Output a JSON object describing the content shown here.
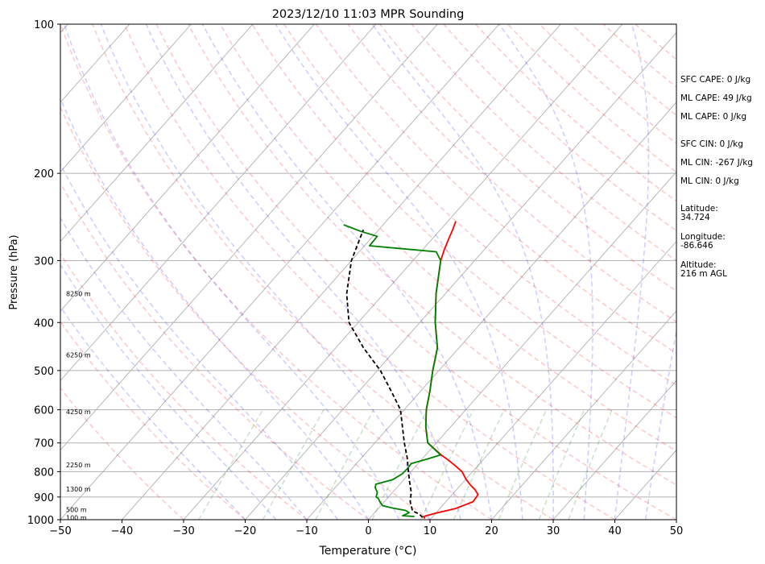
{
  "chart_data": {
    "type": "line",
    "title": "2023/12/10 11:03 MPR Sounding",
    "xlabel": "Temperature (°C)",
    "ylabel": "Pressure (hPa)",
    "xlim": [
      -50,
      50
    ],
    "ylim": [
      1000,
      100
    ],
    "y_scale": "log",
    "x_ticks": [
      "−50",
      "−40",
      "−30",
      "−20",
      "−10",
      "0",
      "10",
      "20",
      "30",
      "40",
      "50"
    ],
    "y_ticks": [
      100,
      200,
      300,
      400,
      500,
      600,
      700,
      800,
      900,
      1000
    ],
    "grid": true,
    "height_labels": [
      {
        "text": "100 m",
        "p": 990
      },
      {
        "text": "500 m",
        "p": 955
      },
      {
        "text": "1300 m",
        "p": 867
      },
      {
        "text": "2250 m",
        "p": 775
      },
      {
        "text": "4250 m",
        "p": 605
      },
      {
        "text": "6250 m",
        "p": 465
      },
      {
        "text": "8250 m",
        "p": 350
      }
    ],
    "series": [
      {
        "kind": "temperature",
        "color": "#ff0000",
        "points": [
          [
            9,
            995
          ],
          [
            8.5,
            985
          ],
          [
            10,
            970
          ],
          [
            12.5,
            950
          ],
          [
            14.4,
            920
          ],
          [
            14.2,
            890
          ],
          [
            13,
            870
          ],
          [
            11.5,
            850
          ],
          [
            10.1,
            830
          ],
          [
            8.3,
            800
          ],
          [
            6.5,
            780
          ],
          [
            4.6,
            760
          ],
          [
            2.5,
            740
          ],
          [
            -1.4,
            700
          ],
          [
            -4,
            650
          ],
          [
            -6.4,
            600
          ],
          [
            -8.5,
            550
          ],
          [
            -11,
            500
          ],
          [
            -13.5,
            450
          ],
          [
            -17.5,
            400
          ],
          [
            -21.5,
            350
          ],
          [
            -25.5,
            300
          ],
          [
            -26.5,
            285
          ],
          [
            -27.4,
            270
          ],
          [
            -28,
            260
          ],
          [
            -28.7,
            250
          ]
        ]
      },
      {
        "kind": "dewpoint",
        "color": "#008000",
        "points": [
          [
            7,
            985
          ],
          [
            5,
            982
          ],
          [
            5.6,
            968
          ],
          [
            4.7,
            958
          ],
          [
            2.4,
            948
          ],
          [
            0.3,
            937
          ],
          [
            -0.6,
            922
          ],
          [
            -1.5,
            905
          ],
          [
            -2,
            900
          ],
          [
            -2.5,
            880
          ],
          [
            -3.5,
            862
          ],
          [
            -3.9,
            848
          ],
          [
            -1.8,
            830
          ],
          [
            -1.1,
            808
          ],
          [
            -1,
            790
          ],
          [
            -1.1,
            770
          ],
          [
            0.8,
            755
          ],
          [
            2.4,
            740
          ],
          [
            -1.4,
            700
          ],
          [
            -4,
            650
          ],
          [
            -6.4,
            600
          ],
          [
            -8.5,
            550
          ],
          [
            -11,
            500
          ],
          [
            -13.5,
            450
          ],
          [
            -17.5,
            400
          ],
          [
            -21.5,
            350
          ],
          [
            -25.5,
            300
          ],
          [
            -27.5,
            288
          ],
          [
            -39.2,
            280
          ],
          [
            -39.3,
            268
          ],
          [
            -42.6,
            262
          ],
          [
            -46.4,
            254
          ]
        ]
      },
      {
        "kind": "parcel",
        "color": "#000000",
        "points": [
          [
            8.5,
            990
          ],
          [
            7.5,
            975
          ],
          [
            5.9,
            960
          ],
          [
            4.2,
            920
          ],
          [
            3,
            880
          ],
          [
            1.3,
            840
          ],
          [
            -0.4,
            800
          ],
          [
            -2.6,
            750
          ],
          [
            -5.2,
            700
          ],
          [
            -7.8,
            650
          ],
          [
            -10.6,
            600
          ],
          [
            -14.8,
            550
          ],
          [
            -19.5,
            500
          ],
          [
            -25.5,
            450
          ],
          [
            -31.5,
            400
          ],
          [
            -36,
            350
          ],
          [
            -40,
            300
          ],
          [
            -42.5,
            260
          ]
        ]
      }
    ]
  },
  "side_info": {
    "sfc_cape": "SFC CAPE: 0 J/kg",
    "ml_cape_1": "ML CAPE: 49 J/kg",
    "ml_cape_2": "ML CAPE: 0 J/kg",
    "sfc_cin": "SFC CIN: 0 J/kg",
    "ml_cin_1": "ML CIN: -267 J/kg",
    "ml_cin_2": "ML CIN: 0 J/kg",
    "latitude_label": "Latitude:",
    "latitude_value": "34.724",
    "longitude_label": "Longitude:",
    "longitude_value": "-86.646",
    "altitude_label": "Altitude:",
    "altitude_value": "216 m AGL"
  }
}
